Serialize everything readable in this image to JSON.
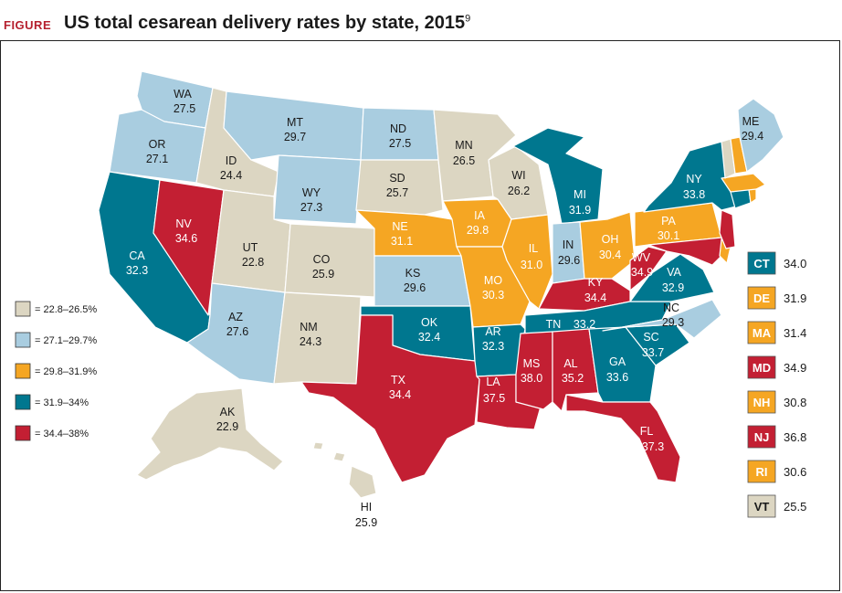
{
  "figure": {
    "label": "FIGURE",
    "title": "US total cesarean delivery rates by state, 2015",
    "footnote": "9"
  },
  "colors": {
    "beige": "#dcd6c2",
    "light_blue": "#a9cde0",
    "orange": "#f5a623",
    "teal": "#00778f",
    "red": "#c31f33"
  },
  "legend": [
    {
      "label": "= 22.8–26.5%",
      "color": "#dcd6c2"
    },
    {
      "label": "= 27.1–29.7%",
      "color": "#a9cde0"
    },
    {
      "label": "= 29.8–31.9%",
      "color": "#f5a623"
    },
    {
      "label": "= 31.9–34%",
      "color": "#00778f"
    },
    {
      "label": "= 34.4–38%",
      "color": "#c31f33"
    }
  ],
  "states": {
    "WA": {
      "abbr": "WA",
      "value": "27.5"
    },
    "OR": {
      "abbr": "OR",
      "value": "27.1"
    },
    "CA": {
      "abbr": "CA",
      "value": "32.3"
    },
    "NV": {
      "abbr": "NV",
      "value": "34.6"
    },
    "ID": {
      "abbr": "ID",
      "value": "24.4"
    },
    "MT": {
      "abbr": "MT",
      "value": "29.7"
    },
    "WY": {
      "abbr": "WY",
      "value": "27.3"
    },
    "UT": {
      "abbr": "UT",
      "value": "22.8"
    },
    "AZ": {
      "abbr": "AZ",
      "value": "27.6"
    },
    "CO": {
      "abbr": "CO",
      "value": "25.9"
    },
    "NM": {
      "abbr": "NM",
      "value": "24.3"
    },
    "ND": {
      "abbr": "ND",
      "value": "27.5"
    },
    "SD": {
      "abbr": "SD",
      "value": "25.7"
    },
    "NE": {
      "abbr": "NE",
      "value": "31.1"
    },
    "KS": {
      "abbr": "KS",
      "value": "29.6"
    },
    "OK": {
      "abbr": "OK",
      "value": "32.4"
    },
    "TX": {
      "abbr": "TX",
      "value": "34.4"
    },
    "MN": {
      "abbr": "MN",
      "value": "26.5"
    },
    "IA": {
      "abbr": "IA",
      "value": "29.8"
    },
    "MO": {
      "abbr": "MO",
      "value": "30.3"
    },
    "AR": {
      "abbr": "AR",
      "value": "32.3"
    },
    "LA": {
      "abbr": "LA",
      "value": "37.5"
    },
    "WI": {
      "abbr": "WI",
      "value": "26.2"
    },
    "IL": {
      "abbr": "IL",
      "value": "31.0"
    },
    "MI": {
      "abbr": "MI",
      "value": "31.9"
    },
    "IN": {
      "abbr": "IN",
      "value": "29.6"
    },
    "OH": {
      "abbr": "OH",
      "value": "30.4"
    },
    "KY": {
      "abbr": "KY",
      "value": "34.4"
    },
    "TN": {
      "abbr": "TN",
      "value": "33.2"
    },
    "MS": {
      "abbr": "MS",
      "value": "38.0"
    },
    "AL": {
      "abbr": "AL",
      "value": "35.2"
    },
    "GA": {
      "abbr": "GA",
      "value": "33.6"
    },
    "FL": {
      "abbr": "FL",
      "value": "37.3"
    },
    "SC": {
      "abbr": "SC",
      "value": "33.7"
    },
    "NC": {
      "abbr": "NC",
      "value": "29.3"
    },
    "VA": {
      "abbr": "VA",
      "value": "32.9"
    },
    "WV": {
      "abbr": "WV",
      "value": "34.9"
    },
    "PA": {
      "abbr": "PA",
      "value": "30.1"
    },
    "NY": {
      "abbr": "NY",
      "value": "33.8"
    },
    "ME": {
      "abbr": "ME",
      "value": "29.4"
    },
    "AK": {
      "abbr": "AK",
      "value": "22.9"
    },
    "HI": {
      "abbr": "HI",
      "value": "25.9"
    }
  },
  "northeast_boxes": [
    {
      "abbr": "CT",
      "value": "34.0",
      "color": "#00778f"
    },
    {
      "abbr": "DE",
      "value": "31.9",
      "color": "#f5a623"
    },
    {
      "abbr": "MA",
      "value": "31.4",
      "color": "#f5a623"
    },
    {
      "abbr": "MD",
      "value": "34.9",
      "color": "#c31f33"
    },
    {
      "abbr": "NH",
      "value": "30.8",
      "color": "#f5a623"
    },
    {
      "abbr": "NJ",
      "value": "36.8",
      "color": "#c31f33"
    },
    {
      "abbr": "RI",
      "value": "30.6",
      "color": "#f5a623"
    },
    {
      "abbr": "VT",
      "value": "25.5",
      "color": "#dcd6c2"
    }
  ]
}
